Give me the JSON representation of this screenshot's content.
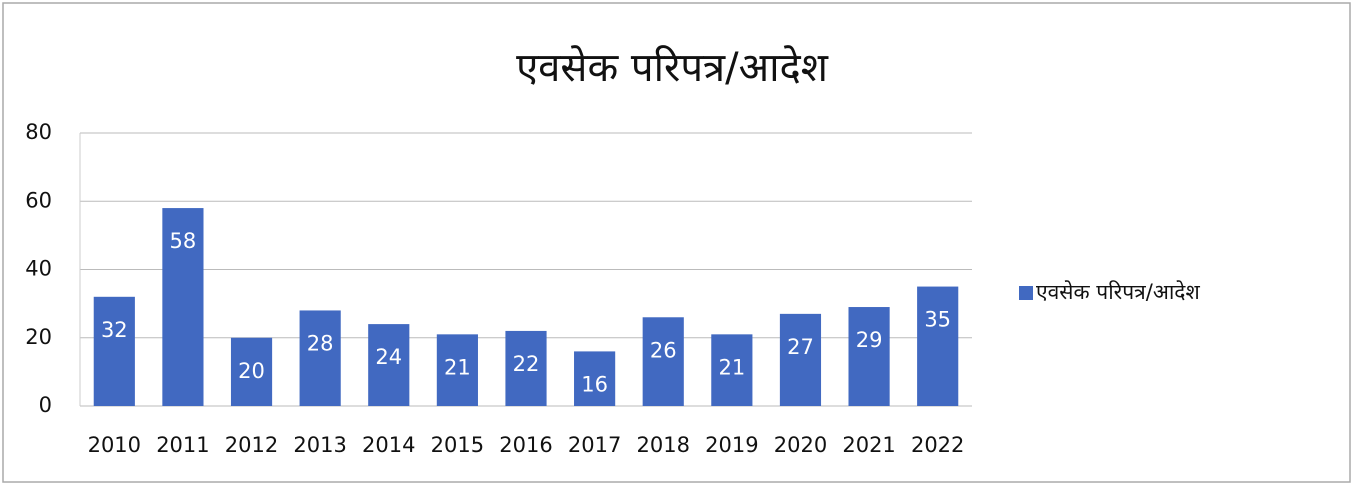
{
  "chart_data": {
    "type": "bar",
    "title": "एवसेक परिपत्र/आदेश",
    "categories": [
      "2010",
      "2011",
      "2012",
      "2013",
      "2014",
      "2015",
      "2016",
      "2017",
      "2018",
      "2019",
      "2020",
      "2021",
      "2022"
    ],
    "series": [
      {
        "name": "एवसेक परिपत्र/आदेश",
        "color": "#4169c1",
        "values": [
          32,
          58,
          20,
          28,
          24,
          21,
          22,
          16,
          26,
          21,
          27,
          29,
          35
        ]
      }
    ],
    "ylim": [
      0,
      80
    ],
    "yticks": [
      0,
      20,
      40,
      60,
      80
    ],
    "grid": true,
    "legend": "right"
  }
}
